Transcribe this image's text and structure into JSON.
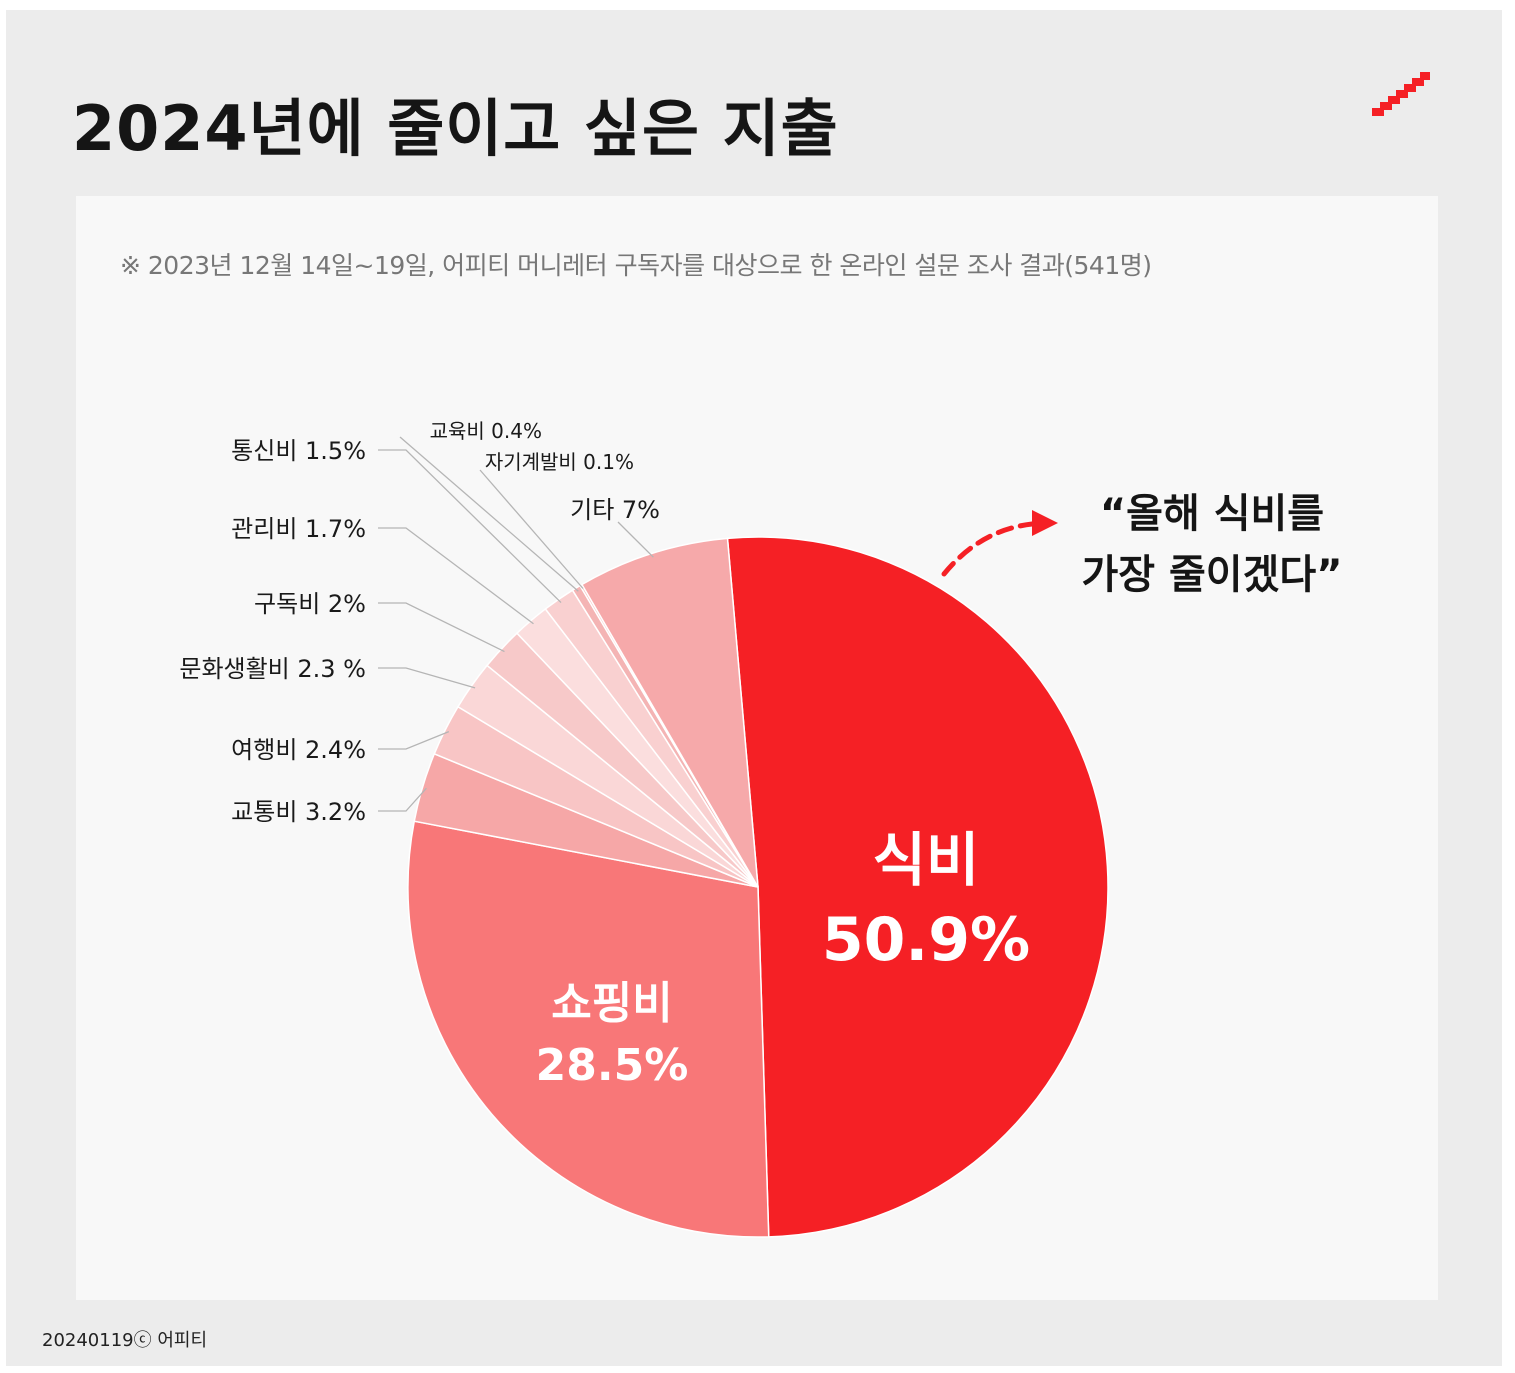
{
  "header": {
    "title": "2024년에 줄이고 싶은 지출"
  },
  "survey_note": "※ 2023년 12월 14일~19일, 어피티 머니레터 구독자를 대상으로 한 온라인 설문 조사 결과(541명)",
  "callout": {
    "line1": "“올해 식비를",
    "line2": "가장 줄이겠다”"
  },
  "footer": {
    "text": "20240119ⓒ 어피티"
  },
  "colors": {
    "accent": "#f52025",
    "background": "#ececec",
    "card": "#f8f8f8"
  },
  "chart_data": {
    "type": "pie",
    "title": "2024년에 줄이고 싶은 지출",
    "unit": "%",
    "slices": [
      {
        "name": "식비",
        "value": 50.9,
        "label": "50.9%",
        "color": "#f52025"
      },
      {
        "name": "쇼핑비",
        "value": 28.5,
        "label": "28.5%",
        "color": "#f87778"
      },
      {
        "name": "교통비",
        "value": 3.2,
        "label": "교통비 3.2%",
        "color": "#f6a7a7"
      },
      {
        "name": "여행비",
        "value": 2.4,
        "label": "여행비 2.4%",
        "color": "#f8c5c5"
      },
      {
        "name": "문화생활비",
        "value": 2.3,
        "label": "문화생활비 2.3 %",
        "color": "#fad7d7"
      },
      {
        "name": "구독비",
        "value": 2.0,
        "label": "구독비 2%",
        "color": "#f7c9c9"
      },
      {
        "name": "관리비",
        "value": 1.7,
        "label": "관리비 1.7%",
        "color": "#fbdede"
      },
      {
        "name": "통신비",
        "value": 1.5,
        "label": "통신비 1.5%",
        "color": "#f9d0d0"
      },
      {
        "name": "교육비",
        "value": 0.4,
        "label": "교육비 0.4%",
        "color": "#f4b4b4"
      },
      {
        "name": "자기계발비",
        "value": 0.1,
        "label": "자기계발비 0.1%",
        "color": "#f5bcbc"
      },
      {
        "name": "기타",
        "value": 7.0,
        "label": "기타 7%",
        "color": "#f6a9aa"
      }
    ]
  }
}
